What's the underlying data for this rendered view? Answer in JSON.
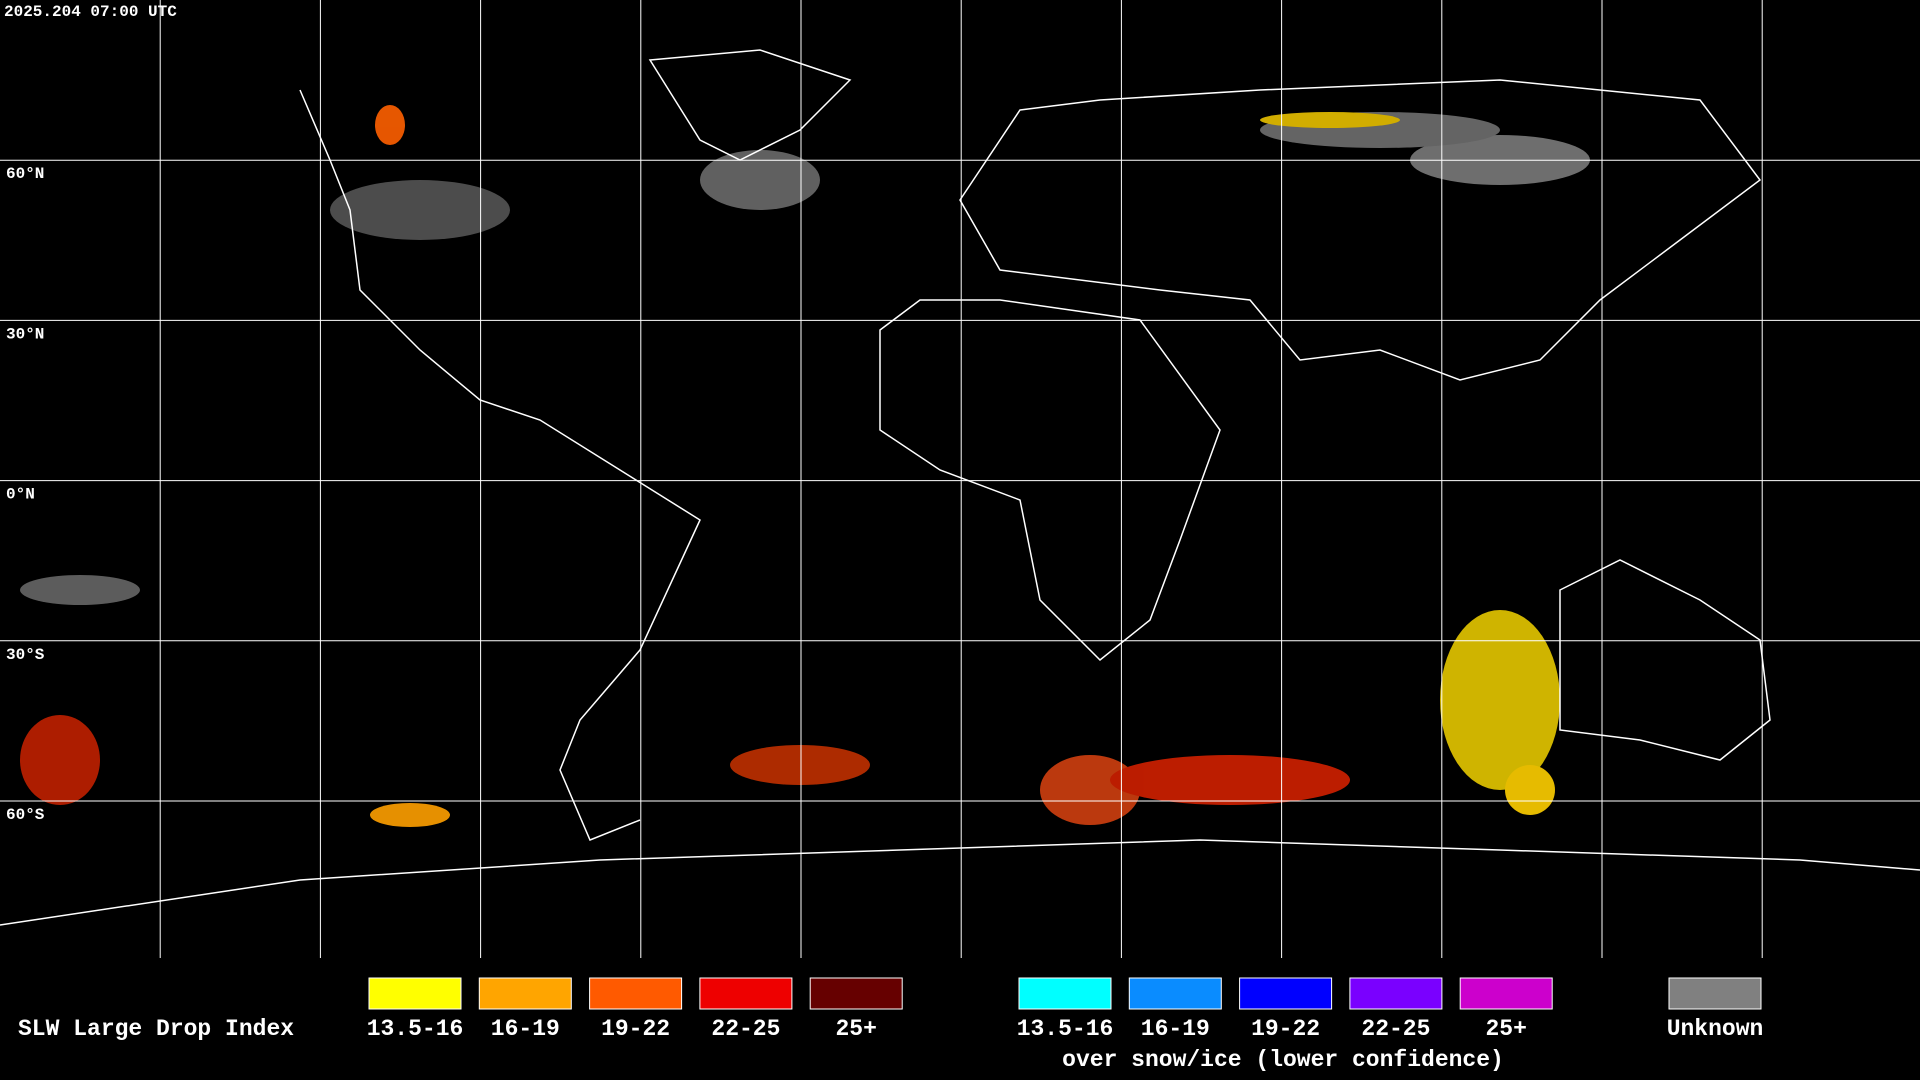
{
  "header": {
    "timestamp": "2025.204 07:00 UTC"
  },
  "map": {
    "latitude_labels": [
      "60°N",
      "30°N",
      "0°N",
      "30°S",
      "60°S"
    ]
  },
  "legend": {
    "title": "SLW Large Drop Index",
    "standard": [
      {
        "label": "13.5-16",
        "color": "#ffff00"
      },
      {
        "label": "16-19",
        "color": "#ffa500"
      },
      {
        "label": "19-22",
        "color": "#ff5a00"
      },
      {
        "label": "22-25",
        "color": "#ee0000"
      },
      {
        "label": "25+",
        "color": "#660000"
      }
    ],
    "snow_ice": [
      {
        "label": "13.5-16",
        "color": "#00ffff"
      },
      {
        "label": "16-19",
        "color": "#0a8cff"
      },
      {
        "label": "19-22",
        "color": "#0000ff"
      },
      {
        "label": "22-25",
        "color": "#7a00ff"
      },
      {
        "label": "25+",
        "color": "#cc00cc"
      }
    ],
    "snow_ice_caption": "over snow/ice (lower confidence)",
    "unknown": {
      "label": "Unknown",
      "color": "#808080"
    }
  }
}
